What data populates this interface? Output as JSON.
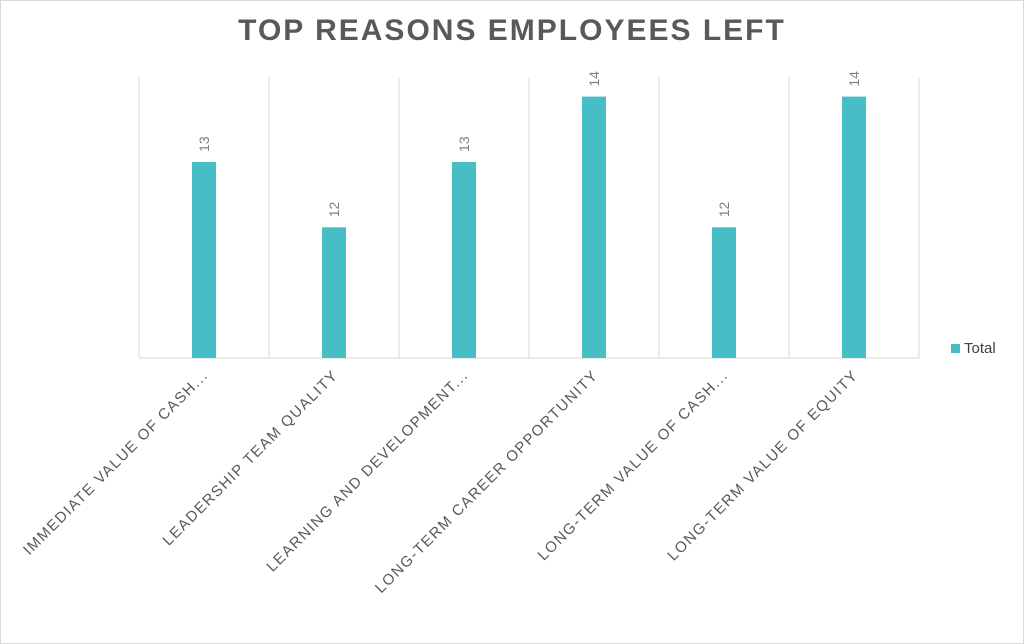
{
  "chart_data": {
    "type": "bar",
    "title": "TOP REASONS EMPLOYEES LEFT",
    "categories": [
      "IMMEDIATE VALUE OF CASH...",
      "LEADERSHIP TEAM QUALITY",
      "LEARNING AND DEVELOPMENT...",
      "LONG-TERM CAREER OPPORTUNITY",
      "LONG-TERM VALUE OF CASH...",
      "LONG-TERM VALUE OF EQUITY"
    ],
    "series": [
      {
        "name": "Total",
        "values": [
          13,
          12,
          13,
          14,
          12,
          14
        ],
        "color": "#47bdc6"
      }
    ],
    "ylim": [
      10,
      14.3
    ],
    "y_axis_visible": false,
    "gridlines": "vertical",
    "data_labels": true,
    "legend": "right"
  }
}
